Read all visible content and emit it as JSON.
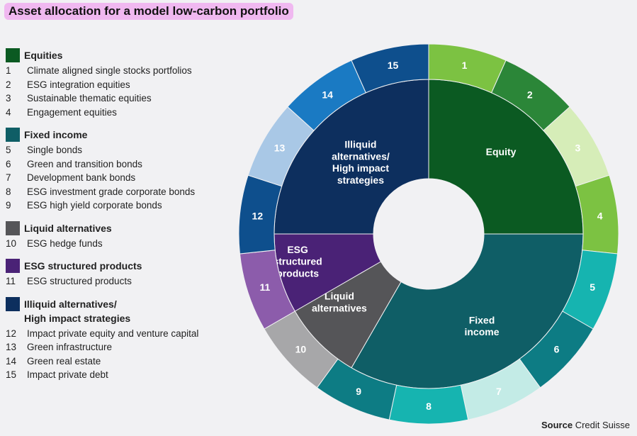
{
  "title": "Asset allocation for a model low-carbon portfolio",
  "source_label": "Source",
  "source_name": "Credit Suisse",
  "legend": [
    {
      "name": "Equities",
      "color": "#0b5a22",
      "items": [
        {
          "n": "1",
          "t": "Climate aligned single stocks portfolios"
        },
        {
          "n": "2",
          "t": "ESG integration equities"
        },
        {
          "n": "3",
          "t": "Sustainable thematic equities"
        },
        {
          "n": "4",
          "t": "Engagement equities"
        }
      ]
    },
    {
      "name": "Fixed income",
      "color": "#0f5e66",
      "items": [
        {
          "n": "5",
          "t": "Single bonds"
        },
        {
          "n": "6",
          "t": "Green and transition bonds"
        },
        {
          "n": "7",
          "t": "Development bank bonds"
        },
        {
          "n": "8",
          "t": "ESG investment grade corporate bonds"
        },
        {
          "n": "9",
          "t": "ESG high yield corporate bonds"
        }
      ]
    },
    {
      "name": "Liquid alternatives",
      "color": "#555558",
      "items": [
        {
          "n": "10",
          "t": "ESG hedge funds"
        }
      ]
    },
    {
      "name": "ESG structured products",
      "color": "#4a2276",
      "items": [
        {
          "n": "11",
          "t": "ESG structured products"
        }
      ]
    },
    {
      "name": "Illiquid alternatives/\nHigh impact strategies",
      "color": "#0d2f5e",
      "items": [
        {
          "n": "12",
          "t": "Impact private equity and venture capital"
        },
        {
          "n": "13",
          "t": "Green infrastructure"
        },
        {
          "n": "14",
          "t": "Green real estate"
        },
        {
          "n": "15",
          "t": "Impact private debt"
        }
      ]
    }
  ],
  "chart_data": {
    "type": "pie",
    "inner": [
      {
        "label": "Equity",
        "value": 25,
        "color": "#0b5a22"
      },
      {
        "label": "Fixed\nincome",
        "value": 33.33,
        "color": "#0f5e66"
      },
      {
        "label": "Liquid\nalternatives",
        "value": 8.33,
        "color": "#555558"
      },
      {
        "label": "ESG\nstructured\nproducts",
        "value": 8.33,
        "color": "#4a2276"
      },
      {
        "label": "Illiquid\nalternatives/\nHigh impact\nstrategies",
        "value": 25,
        "color": "#0d2f5e"
      }
    ],
    "outer": [
      {
        "label": "1",
        "value": 5,
        "color": "#7cc242"
      },
      {
        "label": "2",
        "value": 5,
        "color": "#2b8638"
      },
      {
        "label": "3",
        "value": 5,
        "color": "#d6edb8"
      },
      {
        "label": "4",
        "value": 5,
        "color": "#7cc242"
      },
      {
        "label": "5",
        "value": 5,
        "color": "#16b4b0"
      },
      {
        "label": "6",
        "value": 5,
        "color": "#0d7c84"
      },
      {
        "label": "7",
        "value": 5,
        "color": "#c3ebe6"
      },
      {
        "label": "8",
        "value": 5,
        "color": "#16b4b0"
      },
      {
        "label": "9",
        "value": 5,
        "color": "#0d7c84"
      },
      {
        "label": "10",
        "value": 5,
        "color": "#a7a7a9"
      },
      {
        "label": "11",
        "value": 5,
        "color": "#8c5cab"
      },
      {
        "label": "12",
        "value": 5,
        "color": "#0e4f8d"
      },
      {
        "label": "13",
        "value": 5,
        "color": "#a9c8e6"
      },
      {
        "label": "14",
        "value": 5,
        "color": "#1a7ac3"
      },
      {
        "label": "15",
        "value": 5,
        "color": "#0e4f8d"
      }
    ]
  }
}
